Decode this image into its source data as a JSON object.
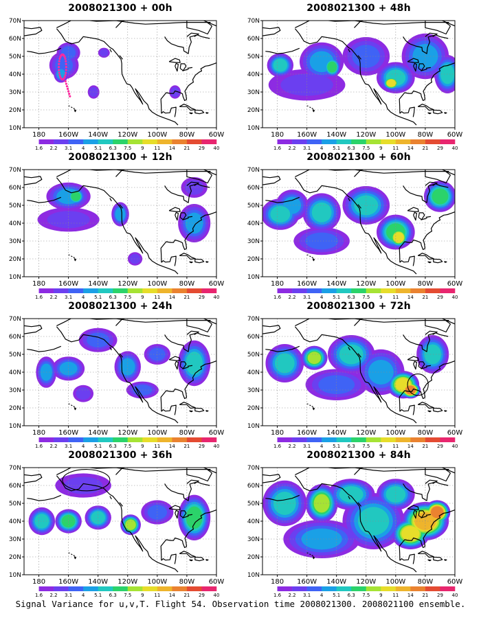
{
  "caption": "Signal Variance for u,v,T. Flight 54. Observation time 2008021300. 2008021100 ensemble.",
  "colors": [
    "#ffffff",
    "#8d2be2",
    "#6b3ff0",
    "#3f63f5",
    "#1aa0e6",
    "#21c8c0",
    "#2bd36a",
    "#a6e334",
    "#e7dd2a",
    "#eeb42c",
    "#ea8230",
    "#e44b32",
    "#e8266f"
  ],
  "chart_data": [
    {
      "type": "heatmap",
      "title": "2008021300 + 00h",
      "lon_ticks": [
        "180",
        "160W",
        "140W",
        "120W",
        "100W",
        "80W",
        "60W"
      ],
      "lat_ticks": [
        "10N",
        "20N",
        "30N",
        "40N",
        "50N",
        "60N",
        "70N"
      ],
      "colorbar_labels": [
        "1.6",
        "2.2",
        "3.1",
        "4",
        "5.1",
        "6.3",
        "7.5",
        "9",
        "11",
        "14",
        "21",
        "29",
        "40"
      ],
      "blobs": [
        [
          -163,
          45,
          9,
          7,
          3
        ],
        [
          -160,
          52,
          7,
          5,
          3
        ],
        [
          -165,
          40,
          4,
          4,
          4
        ],
        [
          -136,
          52,
          3,
          2,
          2
        ],
        [
          -143,
          30,
          3,
          3,
          2
        ],
        [
          -88,
          30,
          3,
          3,
          2
        ]
      ],
      "markers": [
        [
          -164,
          44,
          2.5,
          7
        ]
      ],
      "circles": []
    },
    {
      "type": "heatmap",
      "title": "2008021300 + 48h",
      "lon_ticks": [
        "180",
        "160W",
        "140W",
        "120W",
        "100W",
        "80W",
        "60W"
      ],
      "lat_ticks": [
        "10N",
        "20N",
        "30N",
        "40N",
        "50N",
        "60N",
        "70N"
      ],
      "colorbar_labels": [
        "1.6",
        "2.2",
        "3.1",
        "4",
        "5.1",
        "6.3",
        "7.5",
        "9",
        "11",
        "14",
        "21",
        "29",
        "40"
      ],
      "blobs": [
        [
          -178,
          45,
          8,
          6,
          5
        ],
        [
          -150,
          47,
          14,
          10,
          4
        ],
        [
          -143,
          44,
          5,
          5,
          6
        ],
        [
          -120,
          50,
          15,
          10,
          3
        ],
        [
          -100,
          38,
          12,
          8,
          5
        ],
        [
          -103,
          35,
          5,
          3,
          8
        ],
        [
          -80,
          50,
          15,
          12,
          4
        ],
        [
          -65,
          40,
          8,
          10,
          5
        ],
        [
          -160,
          34,
          25,
          8,
          2
        ]
      ],
      "markers": [],
      "circles": []
    },
    {
      "type": "heatmap",
      "title": "2008021300 + 12h",
      "lon_ticks": [
        "180",
        "160W",
        "140W",
        "120W",
        "100W",
        "80W",
        "60W"
      ],
      "lat_ticks": [
        "10N",
        "20N",
        "30N",
        "40N",
        "50N",
        "60N",
        "70N"
      ],
      "colorbar_labels": [
        "1.6",
        "2.2",
        "3.1",
        "4",
        "5.1",
        "6.3",
        "7.5",
        "9",
        "11",
        "14",
        "21",
        "29",
        "40"
      ],
      "blobs": [
        [
          -160,
          55,
          14,
          7,
          4
        ],
        [
          -155,
          55,
          5,
          4,
          6
        ],
        [
          -125,
          45,
          5,
          6,
          4
        ],
        [
          -160,
          42,
          20,
          6,
          2
        ],
        [
          -75,
          40,
          10,
          10,
          4
        ],
        [
          -75,
          60,
          8,
          5,
          2
        ],
        [
          -115,
          20,
          4,
          3,
          2
        ]
      ],
      "markers": [],
      "circles": []
    },
    {
      "type": "heatmap",
      "title": "2008021300 + 60h",
      "lon_ticks": [
        "180",
        "160W",
        "140W",
        "120W",
        "100W",
        "80W",
        "60W"
      ],
      "lat_ticks": [
        "10N",
        "20N",
        "30N",
        "40N",
        "50N",
        "60N",
        "70N"
      ],
      "colorbar_labels": [
        "1.6",
        "2.2",
        "3.1",
        "4",
        "5.1",
        "6.3",
        "7.5",
        "9",
        "11",
        "14",
        "21",
        "29",
        "40"
      ],
      "blobs": [
        [
          -178,
          45,
          12,
          8,
          5
        ],
        [
          -170,
          50,
          10,
          8,
          4
        ],
        [
          -150,
          46,
          12,
          10,
          5
        ],
        [
          -120,
          50,
          15,
          10,
          5
        ],
        [
          -100,
          35,
          12,
          9,
          6
        ],
        [
          -98,
          32,
          6,
          5,
          8
        ],
        [
          -70,
          55,
          10,
          8,
          6
        ],
        [
          -150,
          30,
          18,
          7,
          3
        ]
      ],
      "markers": [],
      "circles": []
    },
    {
      "type": "heatmap",
      "title": "2008021300 + 24h",
      "lon_ticks": [
        "180",
        "160W",
        "140W",
        "120W",
        "100W",
        "80W",
        "60W"
      ],
      "lat_ticks": [
        "10N",
        "20N",
        "30N",
        "40N",
        "50N",
        "60N",
        "70N"
      ],
      "colorbar_labels": [
        "1.6",
        "2.2",
        "3.1",
        "4",
        "5.1",
        "6.3",
        "7.5",
        "9",
        "11",
        "14",
        "21",
        "29",
        "40"
      ],
      "blobs": [
        [
          -175,
          40,
          6,
          8,
          4
        ],
        [
          -160,
          42,
          10,
          6,
          4
        ],
        [
          -140,
          58,
          12,
          6,
          3
        ],
        [
          -120,
          43,
          8,
          8,
          4
        ],
        [
          -100,
          50,
          8,
          5,
          3
        ],
        [
          -75,
          45,
          10,
          12,
          5
        ],
        [
          -110,
          30,
          10,
          4,
          3
        ],
        [
          -150,
          28,
          6,
          4,
          2
        ]
      ],
      "markers": [],
      "circles": []
    },
    {
      "type": "heatmap",
      "title": "2008021300 + 72h",
      "lon_ticks": [
        "180",
        "160W",
        "140W",
        "120W",
        "100W",
        "80W",
        "60W"
      ],
      "lat_ticks": [
        "10N",
        "20N",
        "30N",
        "40N",
        "50N",
        "60N",
        "70N"
      ],
      "colorbar_labels": [
        "1.6",
        "2.2",
        "3.1",
        "4",
        "5.1",
        "6.3",
        "7.5",
        "9",
        "11",
        "14",
        "21",
        "29",
        "40"
      ],
      "blobs": [
        [
          -175,
          45,
          12,
          10,
          5
        ],
        [
          -155,
          48,
          8,
          6,
          7
        ],
        [
          -130,
          50,
          15,
          10,
          5
        ],
        [
          -110,
          40,
          15,
          12,
          4
        ],
        [
          -95,
          33,
          10,
          7,
          8
        ],
        [
          -90,
          30,
          6,
          4,
          10
        ],
        [
          -75,
          50,
          10,
          10,
          5
        ],
        [
          -140,
          33,
          20,
          8,
          3
        ]
      ],
      "markers": [],
      "circles": [
        [
          -85,
          33,
          7,
          6
        ]
      ]
    },
    {
      "type": "heatmap",
      "title": "2008021300 + 36h",
      "lon_ticks": [
        "180",
        "160W",
        "140W",
        "120W",
        "100W",
        "80W",
        "60W"
      ],
      "lat_ticks": [
        "10N",
        "20N",
        "30N",
        "40N",
        "50N",
        "60N",
        "70N"
      ],
      "colorbar_labels": [
        "1.6",
        "2.2",
        "3.1",
        "4",
        "5.1",
        "6.3",
        "7.5",
        "9",
        "11",
        "14",
        "21",
        "29",
        "40"
      ],
      "blobs": [
        [
          -178,
          40,
          8,
          7,
          5
        ],
        [
          -160,
          40,
          8,
          6,
          6
        ],
        [
          -140,
          42,
          8,
          6,
          5
        ],
        [
          -118,
          38,
          6,
          5,
          7
        ],
        [
          -75,
          42,
          10,
          12,
          6
        ],
        [
          -150,
          60,
          18,
          6,
          2
        ],
        [
          -100,
          45,
          10,
          6,
          3
        ]
      ],
      "markers": [],
      "circles": [
        [
          -148,
          63,
          16,
          6
        ]
      ]
    },
    {
      "type": "heatmap",
      "title": "2008021300 + 84h",
      "lon_ticks": [
        "180",
        "160W",
        "140W",
        "120W",
        "100W",
        "80W",
        "60W"
      ],
      "lat_ticks": [
        "10N",
        "20N",
        "30N",
        "40N",
        "50N",
        "60N",
        "70N"
      ],
      "colorbar_labels": [
        "1.6",
        "2.2",
        "3.1",
        "4",
        "5.1",
        "6.3",
        "7.5",
        "9",
        "11",
        "14",
        "21",
        "29",
        "40"
      ],
      "blobs": [
        [
          -175,
          50,
          14,
          12,
          5
        ],
        [
          -150,
          50,
          10,
          10,
          7
        ],
        [
          -130,
          55,
          15,
          8,
          5
        ],
        [
          -115,
          40,
          20,
          15,
          5
        ],
        [
          -90,
          33,
          12,
          8,
          8
        ],
        [
          -80,
          40,
          15,
          10,
          9
        ],
        [
          -72,
          45,
          8,
          6,
          10
        ],
        [
          -150,
          30,
          25,
          10,
          4
        ],
        [
          -100,
          55,
          12,
          8,
          5
        ]
      ],
      "markers": [],
      "circles": []
    }
  ]
}
